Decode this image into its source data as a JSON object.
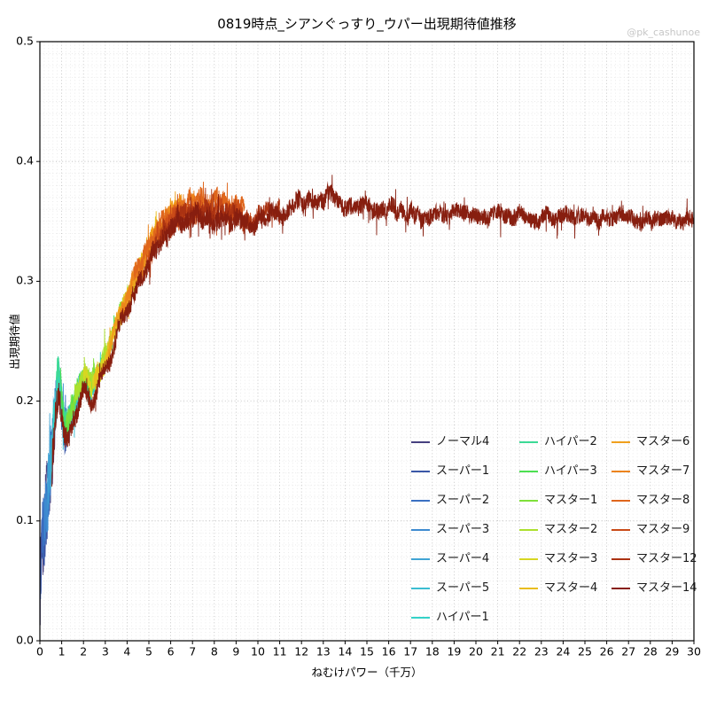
{
  "header": {
    "watermark": "@pk_cashunoe"
  },
  "chart_data": {
    "type": "line",
    "title": "0819時点_シアンぐっすり_ウパー出現期待値推移",
    "xlabel": "ねむけパワー（千万）",
    "ylabel": "出現期待値",
    "xlim": [
      0,
      30
    ],
    "ylim": [
      0.0,
      0.5
    ],
    "xticks": [
      0,
      1,
      2,
      3,
      4,
      5,
      6,
      7,
      8,
      9,
      10,
      11,
      12,
      13,
      14,
      15,
      16,
      17,
      18,
      19,
      20,
      21,
      22,
      23,
      24,
      25,
      26,
      27,
      28,
      29,
      30
    ],
    "yticks": [
      0.0,
      0.1,
      0.2,
      0.3,
      0.4,
      0.5
    ],
    "ytick_labels": [
      "0.0",
      "0.1",
      "0.2",
      "0.3",
      "0.4",
      "0.5"
    ],
    "grid": {
      "on": true,
      "style": "dotted",
      "minor_color": "#e3e3e3",
      "major_color": "#b9b9b9",
      "axis_color": "#000000"
    },
    "legend_position": "lower right, inside axes, 3 columns, no frame",
    "legend_columns": [
      7,
      6,
      6
    ],
    "base_curve": [
      [
        0,
        0.0
      ],
      [
        0.04,
        0.05
      ],
      [
        0.08,
        0.075
      ],
      [
        0.15,
        0.09
      ],
      [
        0.25,
        0.105
      ],
      [
        0.35,
        0.12
      ],
      [
        0.45,
        0.135
      ],
      [
        0.55,
        0.155
      ],
      [
        0.65,
        0.175
      ],
      [
        0.75,
        0.195
      ],
      [
        0.85,
        0.215
      ],
      [
        0.95,
        0.2
      ],
      [
        1.05,
        0.178
      ],
      [
        1.15,
        0.168
      ],
      [
        1.3,
        0.175
      ],
      [
        1.45,
        0.183
      ],
      [
        1.6,
        0.19
      ],
      [
        1.75,
        0.198
      ],
      [
        1.9,
        0.205
      ],
      [
        2.05,
        0.21
      ],
      [
        2.2,
        0.205
      ],
      [
        2.35,
        0.198
      ],
      [
        2.5,
        0.207
      ],
      [
        2.65,
        0.213
      ],
      [
        2.8,
        0.218
      ],
      [
        2.95,
        0.222
      ],
      [
        3.1,
        0.228
      ],
      [
        3.3,
        0.24
      ],
      [
        3.5,
        0.252
      ],
      [
        3.7,
        0.262
      ],
      [
        3.9,
        0.272
      ],
      [
        4.1,
        0.281
      ],
      [
        4.3,
        0.29
      ],
      [
        4.5,
        0.298
      ],
      [
        4.75,
        0.308
      ],
      [
        5.0,
        0.318
      ],
      [
        5.25,
        0.326
      ],
      [
        5.5,
        0.333
      ],
      [
        5.75,
        0.339
      ],
      [
        6.0,
        0.345
      ],
      [
        6.3,
        0.349
      ],
      [
        6.6,
        0.351
      ],
      [
        7.0,
        0.353
      ],
      [
        7.4,
        0.355
      ],
      [
        7.8,
        0.351
      ],
      [
        8.2,
        0.354
      ],
      [
        8.6,
        0.351
      ],
      [
        9.0,
        0.353
      ],
      [
        9.4,
        0.347
      ],
      [
        9.7,
        0.344
      ],
      [
        10.0,
        0.349
      ],
      [
        10.5,
        0.353
      ],
      [
        11.0,
        0.357
      ],
      [
        11.5,
        0.361
      ],
      [
        12.0,
        0.364
      ],
      [
        12.5,
        0.366
      ],
      [
        13.0,
        0.37
      ],
      [
        13.3,
        0.372
      ],
      [
        13.6,
        0.369
      ],
      [
        14.0,
        0.366
      ],
      [
        14.5,
        0.364
      ],
      [
        15.0,
        0.362
      ],
      [
        15.5,
        0.359
      ],
      [
        16.0,
        0.361
      ],
      [
        16.5,
        0.357
      ],
      [
        17.0,
        0.358
      ],
      [
        17.5,
        0.355
      ],
      [
        18.0,
        0.356
      ],
      [
        18.5,
        0.354
      ],
      [
        19.0,
        0.356
      ],
      [
        19.5,
        0.354
      ],
      [
        20.0,
        0.356
      ],
      [
        20.5,
        0.353
      ],
      [
        21.0,
        0.355
      ],
      [
        21.5,
        0.353
      ],
      [
        22.0,
        0.355
      ],
      [
        22.5,
        0.352
      ],
      [
        23.0,
        0.354
      ],
      [
        23.5,
        0.352
      ],
      [
        24.0,
        0.354
      ],
      [
        24.5,
        0.352
      ],
      [
        25.0,
        0.353
      ],
      [
        25.5,
        0.351
      ],
      [
        26.0,
        0.353
      ],
      [
        26.5,
        0.351
      ],
      [
        27.0,
        0.352
      ],
      [
        27.5,
        0.35
      ],
      [
        28.0,
        0.352
      ],
      [
        28.5,
        0.35
      ],
      [
        29.0,
        0.352
      ],
      [
        29.5,
        0.35
      ],
      [
        30.0,
        0.351
      ]
    ],
    "noise_amp": [
      [
        0,
        0.05
      ],
      [
        0.25,
        0.045
      ],
      [
        0.45,
        0.035
      ],
      [
        0.7,
        0.025
      ],
      [
        0.9,
        0.02
      ],
      [
        1.2,
        0.016
      ],
      [
        2.0,
        0.013
      ],
      [
        3.0,
        0.012
      ],
      [
        4.5,
        0.013
      ],
      [
        6.0,
        0.014
      ],
      [
        8.0,
        0.014
      ],
      [
        9.5,
        0.012
      ],
      [
        11,
        0.012
      ],
      [
        13,
        0.013
      ],
      [
        15,
        0.012
      ],
      [
        20,
        0.011
      ],
      [
        25,
        0.011
      ],
      [
        30,
        0.011
      ]
    ],
    "series": [
      {
        "name": "ノーマル4",
        "color": "#46407f",
        "x_start": 0.0,
        "x_end": 0.9,
        "dy": 0.0
      },
      {
        "name": "スーパー1",
        "color": "#3a57a7",
        "x_start": 0.0,
        "x_end": 1.25,
        "dy": 0.003
      },
      {
        "name": "スーパー2",
        "color": "#3a70c2",
        "x_start": 0.1,
        "x_end": 1.55,
        "dy": 0.005
      },
      {
        "name": "スーパー3",
        "color": "#3e8bd0",
        "x_start": 0.2,
        "x_end": 1.85,
        "dy": 0.006
      },
      {
        "name": "スーパー4",
        "color": "#40a4d4",
        "x_start": 0.35,
        "x_end": 2.15,
        "dy": 0.007
      },
      {
        "name": "スーパー5",
        "color": "#3bbdd1",
        "x_start": 0.5,
        "x_end": 2.5,
        "dy": 0.008
      },
      {
        "name": "ハイパー1",
        "color": "#34d2c8",
        "x_start": 0.6,
        "x_end": 2.8,
        "dy": 0.009
      },
      {
        "name": "ハイパー2",
        "color": "#3cda96",
        "x_start": 0.75,
        "x_end": 3.1,
        "dy": 0.01
      },
      {
        "name": "ハイパー3",
        "color": "#4ce051",
        "x_start": 0.95,
        "x_end": 3.45,
        "dy": 0.012
      },
      {
        "name": "マスター1",
        "color": "#7fe03a",
        "x_start": 1.2,
        "x_end": 3.8,
        "dy": 0.013
      },
      {
        "name": "マスター2",
        "color": "#ace02e",
        "x_start": 1.6,
        "x_end": 4.2,
        "dy": 0.012
      },
      {
        "name": "マスター3",
        "color": "#d7d622",
        "x_start": 2.0,
        "x_end": 4.8,
        "dy": 0.011
      },
      {
        "name": "マスター4",
        "color": "#e9bd1f",
        "x_start": 2.5,
        "x_end": 5.5,
        "dy": 0.011
      },
      {
        "name": "マスター6",
        "color": "#f0a01d",
        "x_start": 3.1,
        "x_end": 6.5,
        "dy": 0.011
      },
      {
        "name": "マスター7",
        "color": "#ec831b",
        "x_start": 3.7,
        "x_end": 7.5,
        "dy": 0.011
      },
      {
        "name": "マスター8",
        "color": "#df661c",
        "x_start": 4.3,
        "x_end": 9.4,
        "dy": 0.012
      },
      {
        "name": "マスター9",
        "color": "#c94a18",
        "x_start": 4.9,
        "x_end": 9.7,
        "dy": 0.006
      },
      {
        "name": "マスター12",
        "color": "#aa3212",
        "x_start": 5.5,
        "x_end": 11.0,
        "dy": 0.003
      },
      {
        "name": "マスター14",
        "color": "#871e0f",
        "x_start": 0.55,
        "x_end": 30.0,
        "dy": 0.0
      }
    ]
  }
}
